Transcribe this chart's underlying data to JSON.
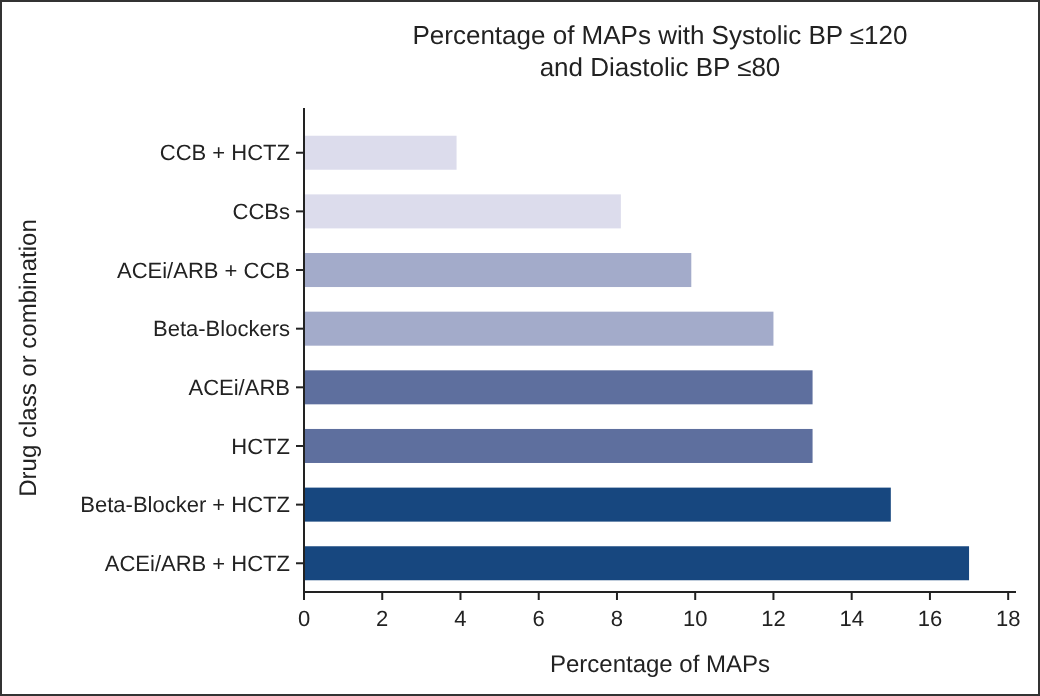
{
  "chart_data": {
    "type": "bar",
    "orientation": "horizontal",
    "title": "Percentage of MAPs with Systolic BP ≤120 and Diastolic BP ≤80",
    "xlabel": "Percentage of MAPs",
    "ylabel": "Drug class or combination",
    "categories": [
      "CCB + HCTZ",
      "CCBs",
      "ACEi/ARB + CCB",
      "Beta-Blockers",
      "ACEi/ARB",
      "HCTZ",
      "Beta-Blocker + HCTZ",
      "ACEi/ARB + HCTZ"
    ],
    "values": [
      3.9,
      8.1,
      9.9,
      12,
      13,
      13,
      15,
      17
    ],
    "colors": [
      "#dcdcec",
      "#dcdcec",
      "#a3abca",
      "#a3abca",
      "#5e6f9e",
      "#5e6f9e",
      "#17477f",
      "#17477f"
    ],
    "xlim": [
      0,
      18.2
    ],
    "xticks": [
      0,
      2,
      4,
      6,
      8,
      10,
      12,
      14,
      16,
      18
    ]
  }
}
